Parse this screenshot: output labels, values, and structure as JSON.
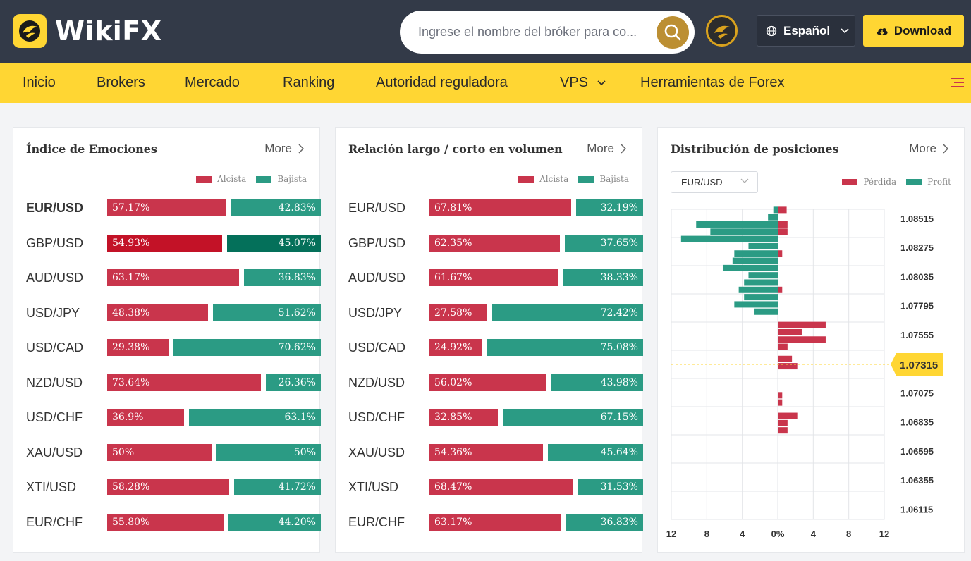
{
  "header": {
    "brand": "WikiFX",
    "search_placeholder": "Ingrese el nombre del bróker para co...",
    "language": "Español",
    "download_label": "Download"
  },
  "nav": {
    "items": [
      "Inicio",
      "Brokers",
      "Mercado",
      "Ranking",
      "Autoridad reguladora",
      "VPS",
      "Herramientas de Forex"
    ]
  },
  "emotions": {
    "title": "Índice de Emociones",
    "more": "More",
    "legend_bull": "Alcista",
    "legend_bear": "Bajista",
    "rows": [
      {
        "pair": "EUR/USD",
        "bull": 57.17,
        "bear": 42.83,
        "bull_label": "57.17%",
        "bear_label": "42.83%"
      },
      {
        "pair": "GBP/USD",
        "bull": 54.93,
        "bear": 45.07,
        "bull_label": "54.93%",
        "bear_label": "45.07%"
      },
      {
        "pair": "AUD/USD",
        "bull": 63.17,
        "bear": 36.83,
        "bull_label": "63.17%",
        "bear_label": "36.83%"
      },
      {
        "pair": "USD/JPY",
        "bull": 48.38,
        "bear": 51.62,
        "bull_label": "48.38%",
        "bear_label": "51.62%"
      },
      {
        "pair": "USD/CAD",
        "bull": 29.38,
        "bear": 70.62,
        "bull_label": "29.38%",
        "bear_label": "70.62%"
      },
      {
        "pair": "NZD/USD",
        "bull": 73.64,
        "bear": 26.36,
        "bull_label": "73.64%",
        "bear_label": "26.36%"
      },
      {
        "pair": "USD/CHF",
        "bull": 36.9,
        "bear": 63.1,
        "bull_label": "36.9%",
        "bear_label": "63.1%"
      },
      {
        "pair": "XAU/USD",
        "bull": 50,
        "bear": 50,
        "bull_label": "50%",
        "bear_label": "50%"
      },
      {
        "pair": "XTI/USD",
        "bull": 58.28,
        "bear": 41.72,
        "bull_label": "58.28%",
        "bear_label": "41.72%"
      },
      {
        "pair": "EUR/CHF",
        "bull": 55.8,
        "bear": 44.2,
        "bull_label": "55.80%",
        "bear_label": "44.20%"
      }
    ]
  },
  "volume": {
    "title": "Relación largo / corto en volumen",
    "more": "More",
    "legend_bull": "Alcista",
    "legend_bear": "Bajista",
    "rows": [
      {
        "pair": "EUR/USD",
        "bull": 67.81,
        "bear": 32.19,
        "bull_label": "67.81%",
        "bear_label": "32.19%"
      },
      {
        "pair": "GBP/USD",
        "bull": 62.35,
        "bear": 37.65,
        "bull_label": "62.35%",
        "bear_label": "37.65%"
      },
      {
        "pair": "AUD/USD",
        "bull": 61.67,
        "bear": 38.33,
        "bull_label": "61.67%",
        "bear_label": "38.33%"
      },
      {
        "pair": "USD/JPY",
        "bull": 27.58,
        "bear": 72.42,
        "bull_label": "27.58%",
        "bear_label": "72.42%"
      },
      {
        "pair": "USD/CAD",
        "bull": 24.92,
        "bear": 75.08,
        "bull_label": "24.92%",
        "bear_label": "75.08%"
      },
      {
        "pair": "NZD/USD",
        "bull": 56.02,
        "bear": 43.98,
        "bull_label": "56.02%",
        "bear_label": "43.98%"
      },
      {
        "pair": "USD/CHF",
        "bull": 32.85,
        "bear": 67.15,
        "bull_label": "32.85%",
        "bear_label": "67.15%"
      },
      {
        "pair": "XAU/USD",
        "bull": 54.36,
        "bear": 45.64,
        "bull_label": "54.36%",
        "bear_label": "45.64%"
      },
      {
        "pair": "XTI/USD",
        "bull": 68.47,
        "bear": 31.53,
        "bull_label": "68.47%",
        "bear_label": "31.53%"
      },
      {
        "pair": "EUR/CHF",
        "bull": 63.17,
        "bear": 36.83,
        "bull_label": "63.17%",
        "bear_label": "36.83%"
      }
    ]
  },
  "distribution": {
    "title": "Distribución de posiciones",
    "more": "More",
    "selected_pair": "EUR/USD",
    "legend_loss": "Pérdida",
    "legend_profit": "Profit",
    "colors": {
      "loss": "#c9354c",
      "profit": "#2b9b84",
      "current": "#ffd633"
    }
  },
  "chart_data": {
    "type": "bar",
    "orientation": "horizontal-diverging",
    "current_price": 1.07315,
    "current_price_label": "1.07315",
    "y_tick_labels": [
      "1.08515",
      "1.08275",
      "1.08035",
      "1.07795",
      "1.07555",
      "1.07315",
      "1.07075",
      "1.06835",
      "1.06595",
      "1.06355",
      "1.06115"
    ],
    "ylim": [
      1.06035,
      1.08595
    ],
    "x_tick_labels": [
      "12",
      "8",
      "4",
      "0%",
      "4",
      "8",
      "12"
    ],
    "xlim": [
      -12,
      12
    ],
    "bars": [
      {
        "price": 1.0859,
        "loss": 1.0,
        "profit": 0.5
      },
      {
        "price": 1.0853,
        "loss": 0,
        "profit": 1.1
      },
      {
        "price": 1.0847,
        "loss": 1.1,
        "profit": 9.2
      },
      {
        "price": 1.0841,
        "loss": 1.1,
        "profit": 7.6
      },
      {
        "price": 1.0835,
        "loss": 0,
        "profit": 10.9
      },
      {
        "price": 1.0829,
        "loss": 0,
        "profit": 3.3
      },
      {
        "price": 1.0823,
        "loss": 0.5,
        "profit": 4.9
      },
      {
        "price": 1.0817,
        "loss": 0,
        "profit": 5.1
      },
      {
        "price": 1.0811,
        "loss": 0,
        "profit": 6.2
      },
      {
        "price": 1.0805,
        "loss": 0,
        "profit": 3.3
      },
      {
        "price": 1.0799,
        "loss": 0,
        "profit": 3.8
      },
      {
        "price": 1.0793,
        "loss": 0.5,
        "profit": 4.4
      },
      {
        "price": 1.0787,
        "loss": 0,
        "profit": 3.8
      },
      {
        "price": 1.0781,
        "loss": 0,
        "profit": 4.9
      },
      {
        "price": 1.0775,
        "loss": 0,
        "profit": 2.7
      },
      {
        "price": 1.0764,
        "loss": 5.4,
        "profit": 0
      },
      {
        "price": 1.0758,
        "loss": 2.7,
        "profit": 0
      },
      {
        "price": 1.0752,
        "loss": 5.4,
        "profit": 0
      },
      {
        "price": 1.0746,
        "loss": 1.1,
        "profit": 0
      },
      {
        "price": 1.0736,
        "loss": 1.6,
        "profit": 0
      },
      {
        "price": 1.073,
        "loss": 2.2,
        "profit": 0
      },
      {
        "price": 1.0706,
        "loss": 0.5,
        "profit": 0
      },
      {
        "price": 1.07,
        "loss": 0.5,
        "profit": 0
      },
      {
        "price": 1.0689,
        "loss": 2.2,
        "profit": 0
      },
      {
        "price": 1.0683,
        "loss": 1.1,
        "profit": 0
      },
      {
        "price": 1.0677,
        "loss": 1.1,
        "profit": 0
      }
    ],
    "grid": true
  }
}
